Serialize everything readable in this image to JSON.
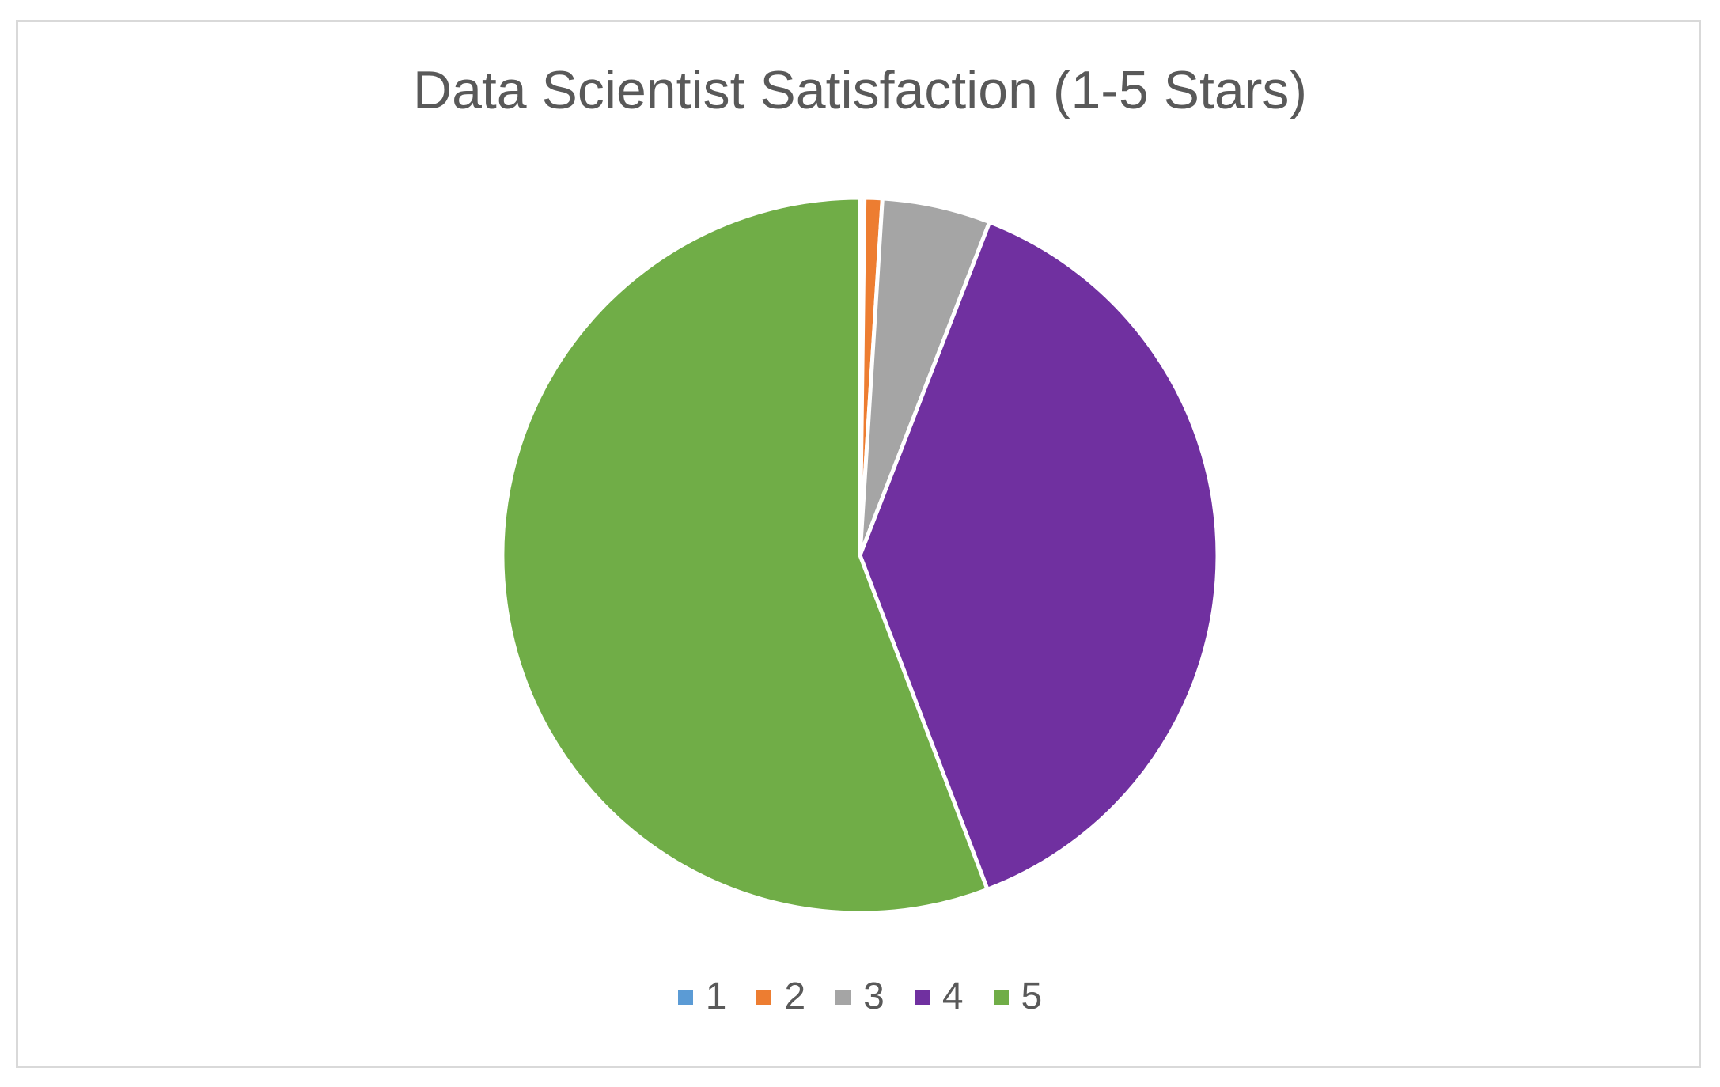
{
  "chart_data": {
    "type": "pie",
    "title": "Data Scientist Satisfaction (1-5 Stars)",
    "categories": [
      "1",
      "2",
      "3",
      "4",
      "5"
    ],
    "values": [
      0.2,
      0.8,
      4.9,
      38.3,
      55.8
    ],
    "unit": "percent",
    "colors": [
      "#5b9bd5",
      "#ed7d31",
      "#a5a5a5",
      "#7030a0",
      "#70ad47"
    ],
    "start_angle": "12 o'clock",
    "direction": "clockwise",
    "legend_position": "bottom"
  }
}
